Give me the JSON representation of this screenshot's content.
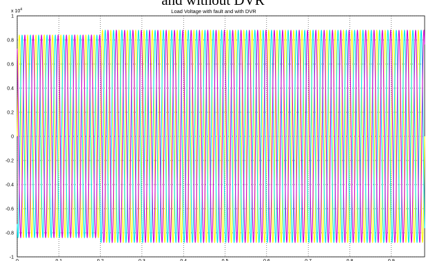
{
  "header_caption": "and without DVR",
  "chart_data": {
    "type": "line",
    "title": "Load Voltage with fault and with DVR",
    "y_multiplier": {
      "base": "x 10",
      "exponent": "4"
    },
    "xlim": [
      0,
      0.98
    ],
    "ylim": [
      -1,
      1
    ],
    "x_ticks": [
      "0",
      "0.1",
      "0.2",
      "0.3",
      "0.4",
      "0.5",
      "0.6",
      "0.7",
      "0.8",
      "0.9"
    ],
    "y_ticks": [
      "1",
      "0.8",
      "0.6",
      "0.4",
      "0.2",
      "0",
      "-0.2",
      "-0.4",
      "-0.6",
      "-0.8",
      "-1"
    ],
    "grid": true,
    "signal": {
      "frequency_hz": 50,
      "amplitude_normal": 0.88,
      "amplitude_sag": 0.84,
      "sag_start": 0.0,
      "sag_end": 0.2
    },
    "series": [
      {
        "color": "#ffff00",
        "phase_deg": 0
      },
      {
        "color": "#00e5ee",
        "phase_deg": -120
      },
      {
        "color": "#d000d0",
        "phase_deg": 120
      }
    ]
  }
}
